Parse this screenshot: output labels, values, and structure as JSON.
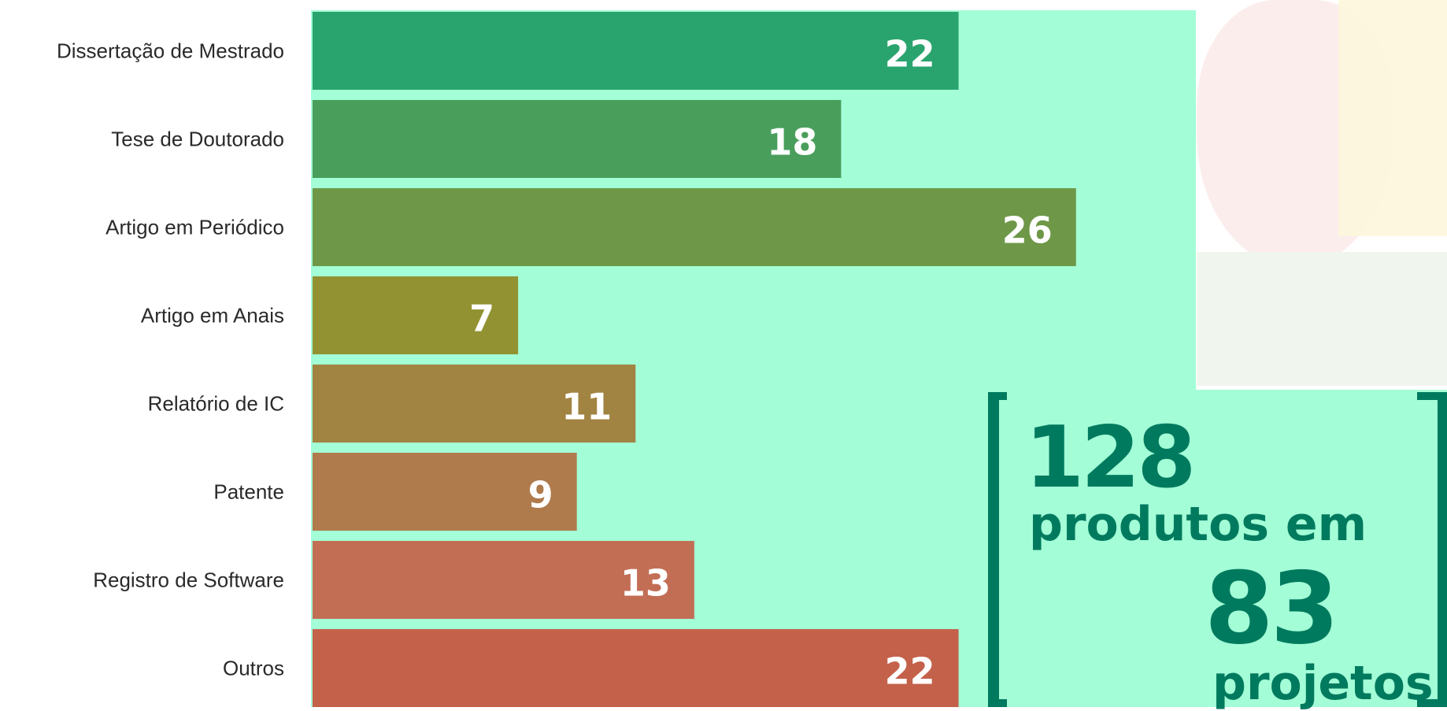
{
  "chart_data": {
    "type": "bar",
    "orientation": "horizontal",
    "categories": [
      "Dissertação de Mestrado",
      "Tese de Doutorado",
      "Artigo em Periódico",
      "Artigo em Anais",
      "Relatório de IC",
      "Patente",
      "Registro de Software",
      "Outros"
    ],
    "values": [
      22,
      18,
      26,
      7,
      11,
      9,
      13,
      22
    ],
    "colors": [
      "#2aa46e",
      "#4a9e5c",
      "#6e9848",
      "#929233",
      "#a18342",
      "#b07b4c",
      "#c26e55",
      "#c4614b"
    ],
    "xlim": [
      0,
      30
    ],
    "background": "#a3fdd6",
    "grid": false,
    "legend": "none",
    "title": "",
    "xlabel": "",
    "ylabel": ""
  },
  "summary": {
    "total": "128",
    "line1": "produtos em",
    "projects": "83",
    "line2": "projetos",
    "color": "#007a5e"
  }
}
